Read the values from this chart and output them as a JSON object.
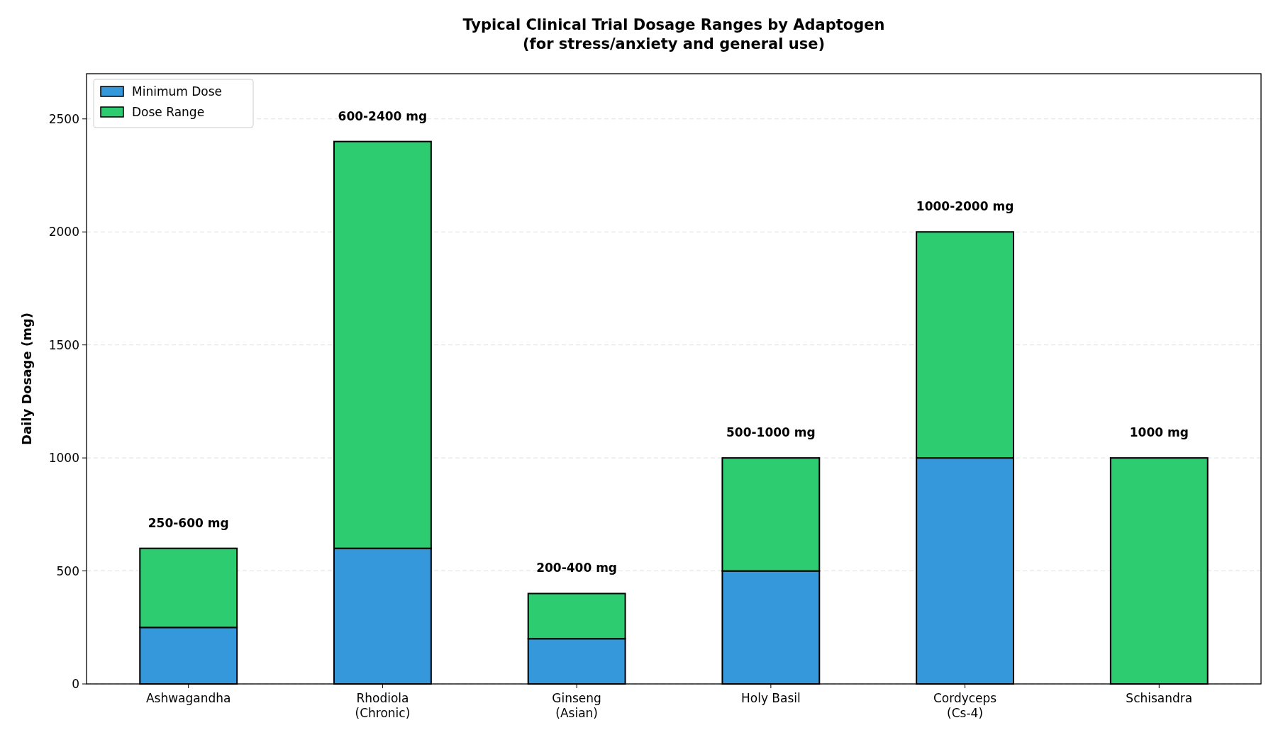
{
  "chart_data": {
    "type": "bar",
    "stacked": true,
    "title": "Typical Clinical Trial Dosage Ranges by Adaptogen\n(for stress/anxiety and general use)",
    "ylabel": "Daily Dosage (mg)",
    "categories": [
      "Ashwagandha",
      "Rhodiola\n(Chronic)",
      "Ginseng\n(Asian)",
      "Holy Basil",
      "Cordyceps\n(Cs-4)",
      "Schisandra"
    ],
    "series": [
      {
        "name": "Minimum Dose",
        "color": "#3498db",
        "values": [
          250,
          600,
          200,
          500,
          1000,
          0
        ]
      },
      {
        "name": "Dose Range",
        "color": "#2ecc71",
        "values": [
          350,
          1800,
          200,
          500,
          1000,
          1000
        ]
      }
    ],
    "totals": [
      "250-600 mg",
      "600-2400 mg",
      "200-400 mg",
      "500-1000 mg",
      "1000-2000 mg",
      "1000 mg"
    ],
    "ylim": [
      0,
      2700
    ],
    "yticks": [
      0,
      500,
      1000,
      1500,
      2000,
      2500
    ],
    "grid": "y",
    "legend": "top left"
  }
}
